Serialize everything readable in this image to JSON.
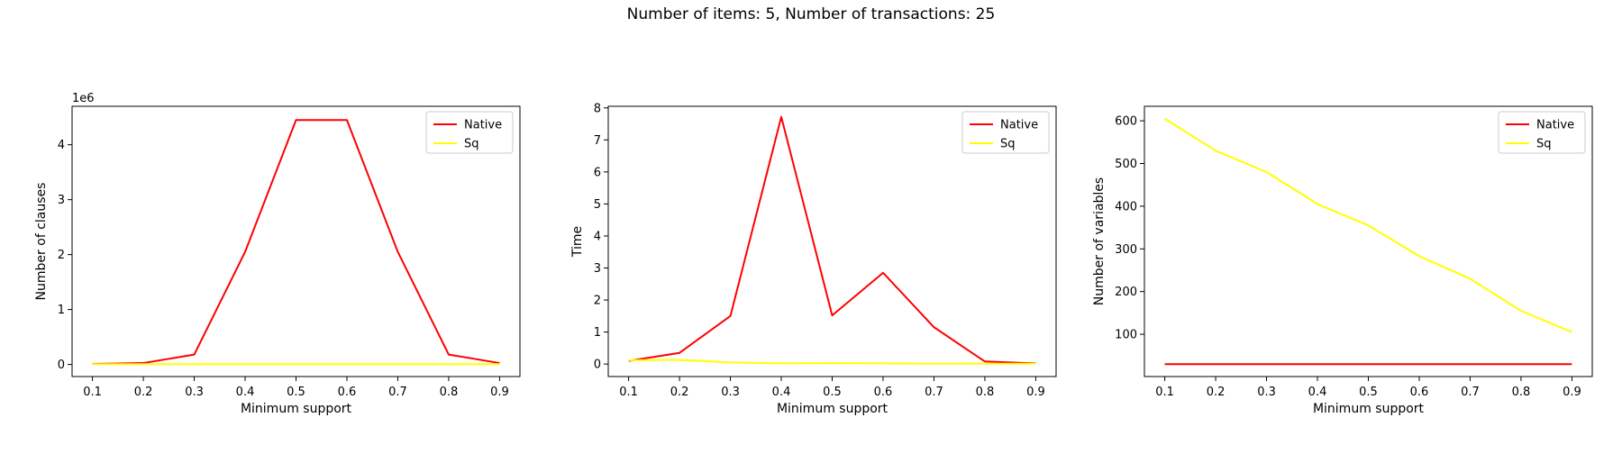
{
  "figure": {
    "suptitle": "Number of items: 5, Number of transactions: 25"
  },
  "chart_data": [
    {
      "type": "line",
      "title": "",
      "xlabel": "Minimum support",
      "ylabel": "Number of clauses",
      "offset_text": "1e6",
      "x": [
        0.1,
        0.2,
        0.3,
        0.4,
        0.5,
        0.6,
        0.7,
        0.8,
        0.9
      ],
      "x_ticks": [
        "0.1",
        "0.2",
        "0.3",
        "0.4",
        "0.5",
        "0.6",
        "0.7",
        "0.8",
        "0.9"
      ],
      "ylim": [
        -0.22,
        4.7
      ],
      "y_ticks": [
        0,
        1,
        2,
        3,
        4
      ],
      "y_tick_labels": [
        "0",
        "1",
        "2",
        "3",
        "4"
      ],
      "legend": "top-right",
      "grid": false,
      "series": [
        {
          "name": "Native",
          "color": "#ff0000",
          "values": [
            0.01,
            0.025,
            0.18,
            2.05,
            4.45,
            4.45,
            2.05,
            0.18,
            0.025
          ]
        },
        {
          "name": "Sq",
          "color": "#ffff00",
          "values": [
            0.005,
            0.006,
            0.006,
            0.006,
            0.006,
            0.006,
            0.006,
            0.006,
            0.006
          ]
        }
      ]
    },
    {
      "type": "line",
      "title": "",
      "xlabel": "Minimum support",
      "ylabel": "Time",
      "x": [
        0.1,
        0.2,
        0.3,
        0.4,
        0.5,
        0.6,
        0.7,
        0.8,
        0.9
      ],
      "x_ticks": [
        "0.1",
        "0.2",
        "0.3",
        "0.4",
        "0.5",
        "0.6",
        "0.7",
        "0.8",
        "0.9"
      ],
      "ylim": [
        -0.39,
        8.05
      ],
      "y_ticks": [
        0,
        1,
        2,
        3,
        4,
        5,
        6,
        7,
        8
      ],
      "y_tick_labels": [
        "0",
        "1",
        "2",
        "3",
        "4",
        "5",
        "6",
        "7",
        "8"
      ],
      "legend": "top-right",
      "grid": false,
      "series": [
        {
          "name": "Native",
          "color": "#ff0000",
          "values": [
            0.1,
            0.35,
            1.5,
            7.72,
            1.52,
            2.85,
            1.15,
            0.08,
            0.02
          ]
        },
        {
          "name": "Sq",
          "color": "#ffff00",
          "values": [
            0.12,
            0.13,
            0.05,
            0.02,
            0.03,
            0.02,
            0.01,
            0.01,
            0.01
          ]
        }
      ]
    },
    {
      "type": "line",
      "title": "",
      "xlabel": "Minimum support",
      "ylabel": "Number of variables",
      "x": [
        0.1,
        0.2,
        0.3,
        0.4,
        0.5,
        0.6,
        0.7,
        0.8,
        0.9
      ],
      "x_ticks": [
        "0.1",
        "0.2",
        "0.3",
        "0.4",
        "0.5",
        "0.6",
        "0.7",
        "0.8",
        "0.9"
      ],
      "ylim": [
        1,
        634
      ],
      "y_ticks": [
        100,
        200,
        300,
        400,
        500,
        600
      ],
      "y_tick_labels": [
        "100",
        "200",
        "300",
        "400",
        "500",
        "600"
      ],
      "legend": "top-right",
      "grid": false,
      "series": [
        {
          "name": "Native",
          "color": "#ff0000",
          "values": [
            30,
            30,
            30,
            30,
            30,
            30,
            30,
            30,
            30
          ]
        },
        {
          "name": "Sq",
          "color": "#ffff00",
          "values": [
            605,
            530,
            480,
            405,
            355,
            283,
            230,
            155,
            105
          ]
        }
      ]
    }
  ]
}
